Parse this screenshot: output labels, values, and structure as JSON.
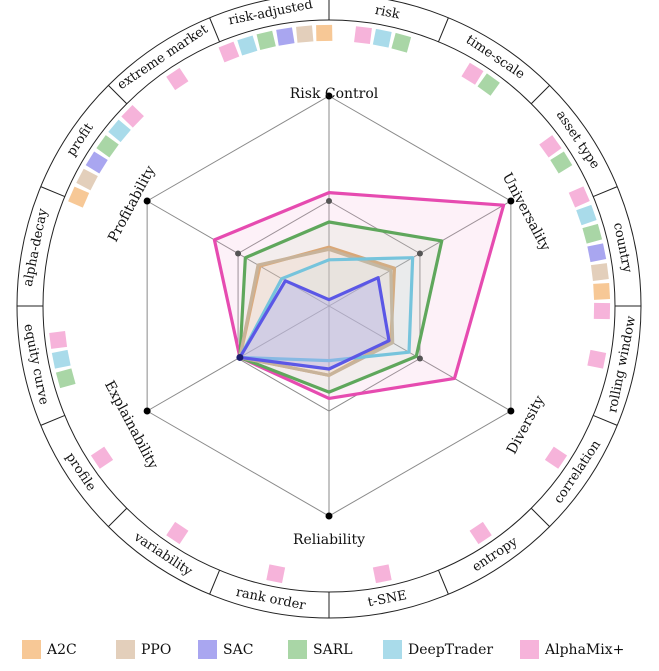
{
  "chart_data": {
    "type": "radar",
    "axes": [
      "Risk Control",
      "Universality",
      "Diversity",
      "Reliability",
      "Explainability",
      "Profitability"
    ],
    "range": [
      0,
      1
    ],
    "grid": {
      "levels": 2
    },
    "series": [
      {
        "name": "A2C",
        "color": "#f7c896",
        "stroke": "#d9a777",
        "values": [
          0.28,
          0.36,
          0.34,
          0.33,
          0.49,
          0.38
        ]
      },
      {
        "name": "PPO",
        "color": "#e3cfbb",
        "stroke": "#c8b39a",
        "values": [
          0.27,
          0.34,
          0.35,
          0.33,
          0.49,
          0.39
        ]
      },
      {
        "name": "SAC",
        "color": "#a9a6f0",
        "stroke": "#5b57e6",
        "values": [
          0.03,
          0.27,
          0.33,
          0.3,
          0.49,
          0.24
        ]
      },
      {
        "name": "SARL",
        "color": "#a9d6a6",
        "stroke": "#5fa75c",
        "values": [
          0.4,
          0.62,
          0.48,
          0.41,
          0.49,
          0.46
        ]
      },
      {
        "name": "DeepTrader",
        "color": "#a9dbea",
        "stroke": "#76c4dc",
        "values": [
          0.22,
          0.46,
          0.44,
          0.26,
          0.49,
          0.26
        ]
      },
      {
        "name": "AlphaMix+",
        "color": "#f6b3da",
        "stroke": "#e64bb0",
        "values": [
          0.54,
          0.96,
          0.69,
          0.44,
          0.49,
          0.63
        ]
      }
    ],
    "ring_labels": [
      "risk",
      "time-scale",
      "asset type",
      "country",
      "rolling window",
      "correlation",
      "entropy",
      "t-SNE",
      "rank order",
      "variability",
      "profile",
      "equity curve",
      "alpha-decay",
      "profit",
      "extreme market",
      "risk-adjusted"
    ],
    "ring_markers": [
      [
        "AlphaMix+",
        "DeepTrader",
        "SARL"
      ],
      [
        "AlphaMix+",
        "SARL"
      ],
      [
        "AlphaMix+",
        "SARL"
      ],
      [
        "AlphaMix+",
        "DeepTrader",
        "SARL",
        "SAC",
        "PPO",
        "A2C",
        "AlphaMix+"
      ],
      [
        "AlphaMix+"
      ],
      [
        "AlphaMix+"
      ],
      [
        "AlphaMix+"
      ],
      [
        "AlphaMix+"
      ],
      [
        "AlphaMix+"
      ],
      [
        "AlphaMix+"
      ],
      [
        "AlphaMix+"
      ],
      [
        "SARL",
        "DeepTrader",
        "AlphaMix+"
      ],
      [],
      [
        "A2C",
        "PPO",
        "SAC",
        "SARL",
        "DeepTrader",
        "AlphaMix+"
      ],
      [
        "AlphaMix+"
      ],
      [
        "AlphaMix+",
        "DeepTrader",
        "SARL",
        "SAC",
        "PPO",
        "A2C"
      ]
    ],
    "legend": {
      "position": "bottom"
    }
  }
}
